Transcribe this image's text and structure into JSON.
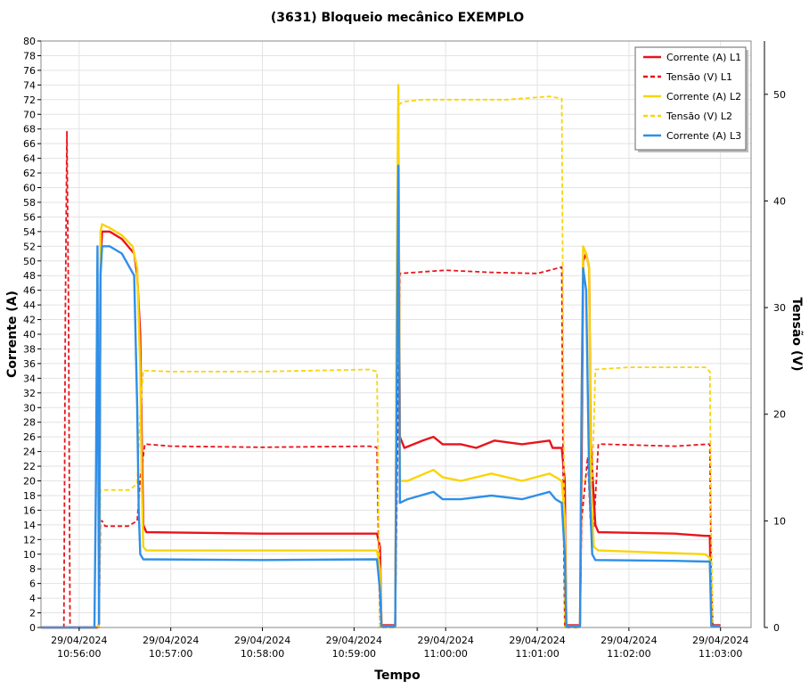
{
  "chart_data": {
    "type": "line",
    "title": "(3631) Bloqueio mecânico EXEMPLO",
    "xlabel": "Tempo",
    "ylabel_left": "Corrente (A)",
    "ylabel_right": "Tensão (V)",
    "x_range": [
      "10:55:35",
      "10:63:20"
    ],
    "y_left_range": [
      0,
      80
    ],
    "y_right_range": [
      0,
      55
    ],
    "grid": true,
    "legend_position": "top-right",
    "x_ticks": [
      {
        "date": "29/04/2024",
        "time": "10:56:00"
      },
      {
        "date": "29/04/2024",
        "time": "10:57:00"
      },
      {
        "date": "29/04/2024",
        "time": "10:58:00"
      },
      {
        "date": "29/04/2024",
        "time": "10:59:00"
      },
      {
        "date": "29/04/2024",
        "time": "11:00:00"
      },
      {
        "date": "29/04/2024",
        "time": "11:01:00"
      },
      {
        "date": "29/04/2024",
        "time": "11:02:00"
      },
      {
        "date": "29/04/2024",
        "time": "11:03:00"
      }
    ],
    "y_left_ticks": [
      0,
      2,
      4,
      6,
      8,
      10,
      12,
      14,
      16,
      18,
      20,
      22,
      24,
      26,
      28,
      30,
      32,
      34,
      36,
      38,
      40,
      42,
      44,
      46,
      48,
      50,
      52,
      54,
      56,
      58,
      60,
      62,
      64,
      66,
      68,
      70,
      72,
      74,
      76,
      78,
      80
    ],
    "y_right_ticks": [
      0,
      10,
      20,
      30,
      40,
      50
    ],
    "colors": {
      "L1": "#e8141c",
      "L2": "#f9d40a",
      "L3": "#2f8fe8"
    },
    "series": [
      {
        "name": "Corrente (A) L1",
        "axis": "left",
        "style": "solid",
        "color": "#e8141c",
        "points": [
          [
            "10:55:35",
            0
          ],
          [
            "10:56:12",
            0
          ],
          [
            "10:56:13",
            0.5
          ],
          [
            "10:56:14",
            50
          ],
          [
            "10:56:15",
            54
          ],
          [
            "10:56:20",
            54
          ],
          [
            "10:56:28",
            53
          ],
          [
            "10:56:36",
            51
          ],
          [
            "10:56:38",
            48
          ],
          [
            "10:56:40",
            40
          ],
          [
            "10:56:41",
            26
          ],
          [
            "10:56:42",
            14
          ],
          [
            "10:56:44",
            13
          ],
          [
            "10:58:00",
            12.8
          ],
          [
            "10:59:15",
            12.8
          ],
          [
            "10:59:17",
            11
          ],
          [
            "10:59:18",
            0.3
          ],
          [
            "10:59:27",
            0.3
          ],
          [
            "10:59:28",
            40
          ],
          [
            "10:59:29",
            70
          ],
          [
            "10:59:30",
            26
          ],
          [
            "10:59:33",
            24.5
          ],
          [
            "10:59:45",
            25.5
          ],
          [
            "10:59:52",
            26
          ],
          [
            "10:59:58",
            25
          ],
          [
            "11:00:10",
            25
          ],
          [
            "11:00:20",
            24.5
          ],
          [
            "11:00:32",
            25.5
          ],
          [
            "11:00:50",
            25
          ],
          [
            "11:01:08",
            25.5
          ],
          [
            "11:01:10",
            24.5
          ],
          [
            "11:01:16",
            24.5
          ],
          [
            "11:01:18",
            20
          ],
          [
            "11:01:19",
            0.3
          ],
          [
            "11:01:28",
            0.3
          ],
          [
            "11:01:29",
            20
          ],
          [
            "11:01:30",
            50
          ],
          [
            "11:01:32",
            51
          ],
          [
            "11:01:34",
            49
          ],
          [
            "11:01:35",
            25
          ],
          [
            "11:01:38",
            14
          ],
          [
            "11:01:40",
            13
          ],
          [
            "11:02:30",
            12.8
          ],
          [
            "11:02:50",
            12.5
          ],
          [
            "11:02:53",
            12.5
          ],
          [
            "11:02:54",
            0.3
          ],
          [
            "11:03:00",
            0.3
          ]
        ]
      },
      {
        "name": "Tensão (V) L1",
        "axis": "right",
        "style": "dashed",
        "color": "#e8141c",
        "points": [
          [
            "10:55:45",
            0
          ],
          [
            "10:55:50",
            0
          ],
          [
            "10:55:51",
            30
          ],
          [
            "10:55:52",
            46.5
          ],
          [
            "10:55:53",
            30
          ],
          [
            "10:55:54",
            0
          ],
          [
            "10:56:13",
            0
          ],
          [
            "10:56:14",
            10
          ],
          [
            "10:56:15",
            10
          ],
          [
            "10:56:17",
            9.5
          ],
          [
            "10:56:20",
            9.5
          ],
          [
            "10:56:32",
            9.5
          ],
          [
            "10:56:38",
            10
          ],
          [
            "10:56:40",
            14
          ],
          [
            "10:56:43",
            17.2
          ],
          [
            "10:57:00",
            17
          ],
          [
            "10:58:00",
            16.9
          ],
          [
            "10:59:10",
            17
          ],
          [
            "10:59:15",
            16.9
          ],
          [
            "10:59:16",
            8
          ],
          [
            "10:59:17",
            0
          ],
          [
            "10:59:27",
            0
          ],
          [
            "10:59:28",
            12
          ],
          [
            "10:59:30",
            33.2
          ],
          [
            "10:59:40",
            33.3
          ],
          [
            "11:00:00",
            33.5
          ],
          [
            "11:00:30",
            33.3
          ],
          [
            "11:01:00",
            33.2
          ],
          [
            "11:01:16",
            33.8
          ],
          [
            "11:01:17",
            12
          ],
          [
            "11:01:18",
            0
          ],
          [
            "11:01:28",
            0
          ],
          [
            "11:01:29",
            10
          ],
          [
            "11:01:33",
            16
          ],
          [
            "11:01:35",
            9.5
          ],
          [
            "11:01:37",
            9.5
          ],
          [
            "11:01:40",
            17.2
          ],
          [
            "11:02:30",
            17
          ],
          [
            "11:02:53",
            17.2
          ],
          [
            "11:02:54",
            4
          ],
          [
            "11:02:55",
            0
          ]
        ]
      },
      {
        "name": "Corrente (A) L2",
        "axis": "left",
        "style": "solid",
        "color": "#f9d40a",
        "points": [
          [
            "10:56:12",
            0
          ],
          [
            "10:56:13",
            0.5
          ],
          [
            "10:56:14",
            54
          ],
          [
            "10:56:15",
            55
          ],
          [
            "10:56:20",
            54.5
          ],
          [
            "10:56:28",
            53.5
          ],
          [
            "10:56:35",
            52
          ],
          [
            "10:56:38",
            49
          ],
          [
            "10:56:40",
            35
          ],
          [
            "10:56:41",
            20
          ],
          [
            "10:56:42",
            11
          ],
          [
            "10:56:44",
            10.5
          ],
          [
            "10:58:00",
            10.5
          ],
          [
            "10:59:15",
            10.5
          ],
          [
            "10:59:17",
            8
          ],
          [
            "10:59:18",
            0.2
          ],
          [
            "10:59:27",
            0.2
          ],
          [
            "10:59:28",
            50
          ],
          [
            "10:59:29",
            74
          ],
          [
            "10:59:30",
            20
          ],
          [
            "10:59:35",
            20
          ],
          [
            "10:59:52",
            21.5
          ],
          [
            "10:59:58",
            20.5
          ],
          [
            "11:00:10",
            20
          ],
          [
            "11:00:30",
            21
          ],
          [
            "11:00:50",
            20
          ],
          [
            "11:01:08",
            21
          ],
          [
            "11:01:16",
            20
          ],
          [
            "11:01:18",
            15
          ],
          [
            "11:01:19",
            0.2
          ],
          [
            "11:01:28",
            0.2
          ],
          [
            "11:01:29",
            30
          ],
          [
            "11:01:30",
            52
          ],
          [
            "11:01:32",
            51
          ],
          [
            "11:01:34",
            49
          ],
          [
            "11:01:35",
            20
          ],
          [
            "11:01:37",
            11
          ],
          [
            "11:01:40",
            10.5
          ],
          [
            "11:02:50",
            10
          ],
          [
            "11:02:53",
            9.5
          ],
          [
            "11:02:54",
            0.2
          ],
          [
            "11:03:00",
            0.2
          ]
        ]
      },
      {
        "name": "Tensão (V) L2",
        "axis": "right",
        "style": "dashed",
        "color": "#f9d40a",
        "points": [
          [
            "10:56:12",
            0
          ],
          [
            "10:56:13",
            0
          ],
          [
            "10:56:14",
            12.9
          ],
          [
            "10:56:20",
            12.9
          ],
          [
            "10:56:33",
            12.9
          ],
          [
            "10:56:38",
            13.5
          ],
          [
            "10:56:40",
            20
          ],
          [
            "10:56:42",
            24.1
          ],
          [
            "10:57:00",
            24
          ],
          [
            "10:58:00",
            24
          ],
          [
            "10:59:10",
            24.2
          ],
          [
            "10:59:15",
            24
          ],
          [
            "10:59:16",
            12
          ],
          [
            "10:59:17",
            0
          ],
          [
            "10:59:27",
            0
          ],
          [
            "10:59:28",
            30
          ],
          [
            "10:59:29",
            49
          ],
          [
            "10:59:32",
            49.3
          ],
          [
            "10:59:45",
            49.5
          ],
          [
            "11:00:10",
            49.5
          ],
          [
            "11:00:40",
            49.5
          ],
          [
            "11:01:08",
            49.8
          ],
          [
            "11:01:16",
            49.6
          ],
          [
            "11:01:17",
            25
          ],
          [
            "11:01:18",
            0
          ],
          [
            "11:01:28",
            0
          ],
          [
            "11:01:29",
            13.5
          ],
          [
            "11:01:32",
            14
          ],
          [
            "11:01:36",
            13.8
          ],
          [
            "11:01:38",
            24.2
          ],
          [
            "11:02:00",
            24.4
          ],
          [
            "11:02:50",
            24.4
          ],
          [
            "11:02:53",
            24
          ],
          [
            "11:02:54",
            8
          ],
          [
            "11:02:55",
            0
          ]
        ]
      },
      {
        "name": "Corrente (A) L3",
        "axis": "left",
        "style": "solid",
        "color": "#2f8fe8",
        "points": [
          [
            "10:55:35",
            0
          ],
          [
            "10:56:10",
            0
          ],
          [
            "10:56:11",
            20
          ],
          [
            "10:56:12",
            52
          ],
          [
            "10:56:13",
            0.5
          ],
          [
            "10:56:14",
            48
          ],
          [
            "10:56:15",
            52
          ],
          [
            "10:56:20",
            52
          ],
          [
            "10:56:28",
            51
          ],
          [
            "10:56:36",
            48
          ],
          [
            "10:56:38",
            30
          ],
          [
            "10:56:39",
            16
          ],
          [
            "10:56:40",
            10
          ],
          [
            "10:56:42",
            9.3
          ],
          [
            "10:58:00",
            9.2
          ],
          [
            "10:59:15",
            9.3
          ],
          [
            "10:59:17",
            5
          ],
          [
            "10:59:18",
            0.2
          ],
          [
            "10:59:27",
            0.2
          ],
          [
            "10:59:28",
            35
          ],
          [
            "10:59:29",
            63
          ],
          [
            "10:59:30",
            17
          ],
          [
            "10:59:35",
            17.5
          ],
          [
            "10:59:52",
            18.5
          ],
          [
            "10:59:58",
            17.5
          ],
          [
            "11:00:10",
            17.5
          ],
          [
            "11:00:30",
            18
          ],
          [
            "11:00:50",
            17.5
          ],
          [
            "11:01:08",
            18.5
          ],
          [
            "11:01:12",
            17.5
          ],
          [
            "11:01:16",
            17
          ],
          [
            "11:01:18",
            10
          ],
          [
            "11:01:19",
            0.2
          ],
          [
            "11:01:28",
            0.2
          ],
          [
            "11:01:29",
            30
          ],
          [
            "11:01:30",
            49
          ],
          [
            "11:01:32",
            46
          ],
          [
            "11:01:34",
            20
          ],
          [
            "11:01:36",
            10
          ],
          [
            "11:01:38",
            9.2
          ],
          [
            "11:02:30",
            9.1
          ],
          [
            "11:02:50",
            9
          ],
          [
            "11:02:53",
            9
          ],
          [
            "11:02:54",
            0.2
          ],
          [
            "11:03:00",
            0.2
          ]
        ]
      }
    ]
  }
}
